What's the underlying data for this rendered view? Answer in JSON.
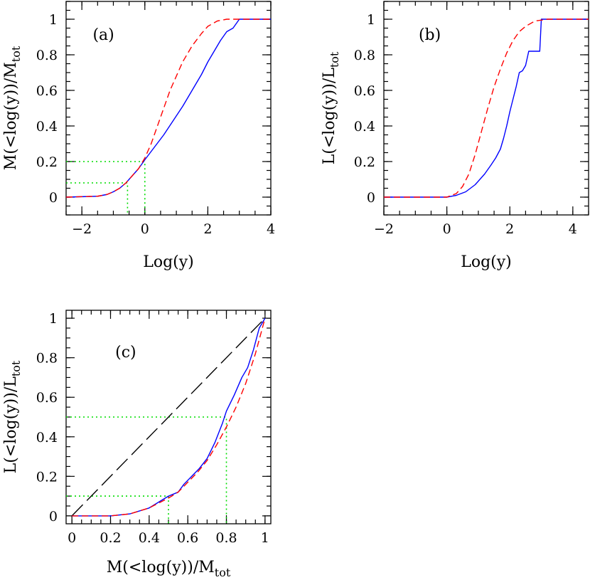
{
  "chart_data": [
    {
      "type": "line",
      "panel_label": "(a)",
      "xlabel": "Log(y)",
      "ylabel_main": "M(<log(y))/M",
      "ylabel_sub": "tot",
      "xlim": [
        -2.5,
        4
      ],
      "ylim": [
        -0.1,
        1.1
      ],
      "xticks": [
        -2,
        0,
        2,
        4
      ],
      "xtick_labels": [
        "−2",
        "0",
        "2",
        "4"
      ],
      "yticks": [
        0,
        0.2,
        0.4,
        0.6,
        0.8,
        1
      ],
      "ytick_labels": [
        "0",
        "0.2",
        "0.4",
        "0.6",
        "0.8",
        "1"
      ],
      "series": [
        {
          "style": "solid",
          "color": "#0000ff",
          "x": [
            -2.5,
            -1.5,
            -1.2,
            -1.0,
            -0.8,
            -0.6,
            -0.4,
            -0.2,
            0.0,
            0.3,
            0.6,
            0.9,
            1.2,
            1.5,
            1.8,
            2.0,
            2.2,
            2.4,
            2.6,
            2.8,
            3.0,
            3.5,
            4.0
          ],
          "y": [
            0,
            0.005,
            0.015,
            0.03,
            0.05,
            0.08,
            0.12,
            0.16,
            0.21,
            0.28,
            0.35,
            0.43,
            0.51,
            0.6,
            0.69,
            0.76,
            0.82,
            0.88,
            0.93,
            0.95,
            1.0,
            1.0,
            1.0
          ]
        },
        {
          "style": "dashed",
          "color": "#ff0000",
          "x": [
            -2.5,
            -1.5,
            -1.2,
            -1.0,
            -0.8,
            -0.6,
            -0.4,
            -0.2,
            0.0,
            0.2,
            0.4,
            0.6,
            0.8,
            1.0,
            1.2,
            1.5,
            1.8,
            2.0,
            2.3,
            2.6,
            3.0,
            4.0
          ],
          "y": [
            0,
            0.005,
            0.015,
            0.03,
            0.05,
            0.08,
            0.12,
            0.16,
            0.22,
            0.3,
            0.4,
            0.5,
            0.6,
            0.68,
            0.76,
            0.85,
            0.92,
            0.96,
            0.99,
            1.0,
            1.0,
            1.0
          ]
        }
      ],
      "guides": [
        {
          "color": "#00dd00",
          "points": [
            [
              -2.5,
              0.2
            ],
            [
              0.0,
              0.2
            ],
            [
              0.0,
              -0.1
            ]
          ]
        },
        {
          "color": "#00dd00",
          "points": [
            [
              -2.5,
              0.08
            ],
            [
              -0.55,
              0.08
            ],
            [
              -0.55,
              -0.1
            ]
          ]
        }
      ]
    },
    {
      "type": "line",
      "panel_label": "(b)",
      "xlabel": "Log(y)",
      "ylabel_main": "L(<log(y))/L",
      "ylabel_sub": "tot",
      "xlim": [
        -2,
        4.5
      ],
      "ylim": [
        -0.1,
        1.1
      ],
      "xticks": [
        -2,
        0,
        2,
        4
      ],
      "xtick_labels": [
        "−2",
        "0",
        "2",
        "4"
      ],
      "yticks": [
        0,
        0.2,
        0.4,
        0.6,
        0.8,
        1
      ],
      "ytick_labels": [
        "0",
        "0.2",
        "0.4",
        "0.6",
        "0.8",
        "1"
      ],
      "series": [
        {
          "style": "solid",
          "color": "#0000ff",
          "x": [
            -2,
            0.0,
            0.3,
            0.6,
            0.9,
            1.2,
            1.4,
            1.55,
            1.7,
            1.8,
            1.9,
            2.0,
            2.1,
            2.2,
            2.3,
            2.4,
            2.5,
            2.6,
            2.7,
            2.8,
            2.95,
            3.0,
            3.5,
            4.5
          ],
          "y": [
            0,
            0.0,
            0.01,
            0.03,
            0.07,
            0.13,
            0.18,
            0.22,
            0.27,
            0.33,
            0.4,
            0.48,
            0.55,
            0.62,
            0.7,
            0.71,
            0.74,
            0.82,
            0.82,
            0.82,
            0.82,
            1.0,
            1.0,
            1.0
          ]
        },
        {
          "style": "dashed",
          "color": "#ff0000",
          "x": [
            -2,
            0.0,
            0.3,
            0.5,
            0.7,
            0.9,
            1.1,
            1.3,
            1.5,
            1.7,
            1.9,
            2.1,
            2.3,
            2.5,
            2.8,
            3.2,
            4.5
          ],
          "y": [
            0,
            0.0,
            0.02,
            0.06,
            0.13,
            0.24,
            0.37,
            0.5,
            0.62,
            0.72,
            0.81,
            0.88,
            0.93,
            0.96,
            0.99,
            1.0,
            1.0
          ]
        }
      ]
    },
    {
      "type": "line",
      "panel_label": "(c)",
      "xlabel_main": "M(<log(y))/M",
      "xlabel_sub": "tot",
      "ylabel_main": "L(<log(y))/L",
      "ylabel_sub": "tot",
      "xlim": [
        -0.03,
        1.03
      ],
      "ylim": [
        -0.04,
        1.04
      ],
      "xticks": [
        0,
        0.2,
        0.4,
        0.6,
        0.8,
        1
      ],
      "xtick_labels": [
        "0",
        "0.2",
        "0.4",
        "0.6",
        "0.8",
        "1"
      ],
      "yticks": [
        0,
        0.2,
        0.4,
        0.6,
        0.8,
        1
      ],
      "ytick_labels": [
        "0",
        "0.2",
        "0.4",
        "0.6",
        "0.8",
        "1"
      ],
      "series": [
        {
          "style": "longdash",
          "color": "#000000",
          "x": [
            0,
            1
          ],
          "y": [
            0,
            1
          ]
        },
        {
          "style": "solid",
          "color": "#0000ff",
          "x": [
            0,
            0.2,
            0.3,
            0.4,
            0.5,
            0.55,
            0.58,
            0.62,
            0.66,
            0.7,
            0.74,
            0.78,
            0.8,
            0.84,
            0.88,
            0.91,
            0.94,
            0.97,
            1.0
          ],
          "y": [
            0,
            0.0,
            0.01,
            0.04,
            0.1,
            0.12,
            0.16,
            0.2,
            0.24,
            0.29,
            0.37,
            0.47,
            0.53,
            0.61,
            0.7,
            0.75,
            0.84,
            0.95,
            1.0
          ]
        },
        {
          "style": "dashed",
          "color": "#ff0000",
          "x": [
            0,
            0.2,
            0.3,
            0.4,
            0.5,
            0.55,
            0.6,
            0.65,
            0.7,
            0.75,
            0.8,
            0.85,
            0.9,
            0.95,
            1.0
          ],
          "y": [
            0,
            0.0,
            0.01,
            0.04,
            0.09,
            0.12,
            0.17,
            0.22,
            0.28,
            0.36,
            0.45,
            0.55,
            0.67,
            0.82,
            1.0
          ]
        }
      ],
      "guides": [
        {
          "color": "#00dd00",
          "points": [
            [
              -0.03,
              0.5
            ],
            [
              0.8,
              0.5
            ],
            [
              0.8,
              -0.04
            ]
          ]
        },
        {
          "color": "#00dd00",
          "points": [
            [
              -0.03,
              0.1
            ],
            [
              0.5,
              0.1
            ],
            [
              0.5,
              -0.04
            ]
          ]
        }
      ]
    }
  ]
}
